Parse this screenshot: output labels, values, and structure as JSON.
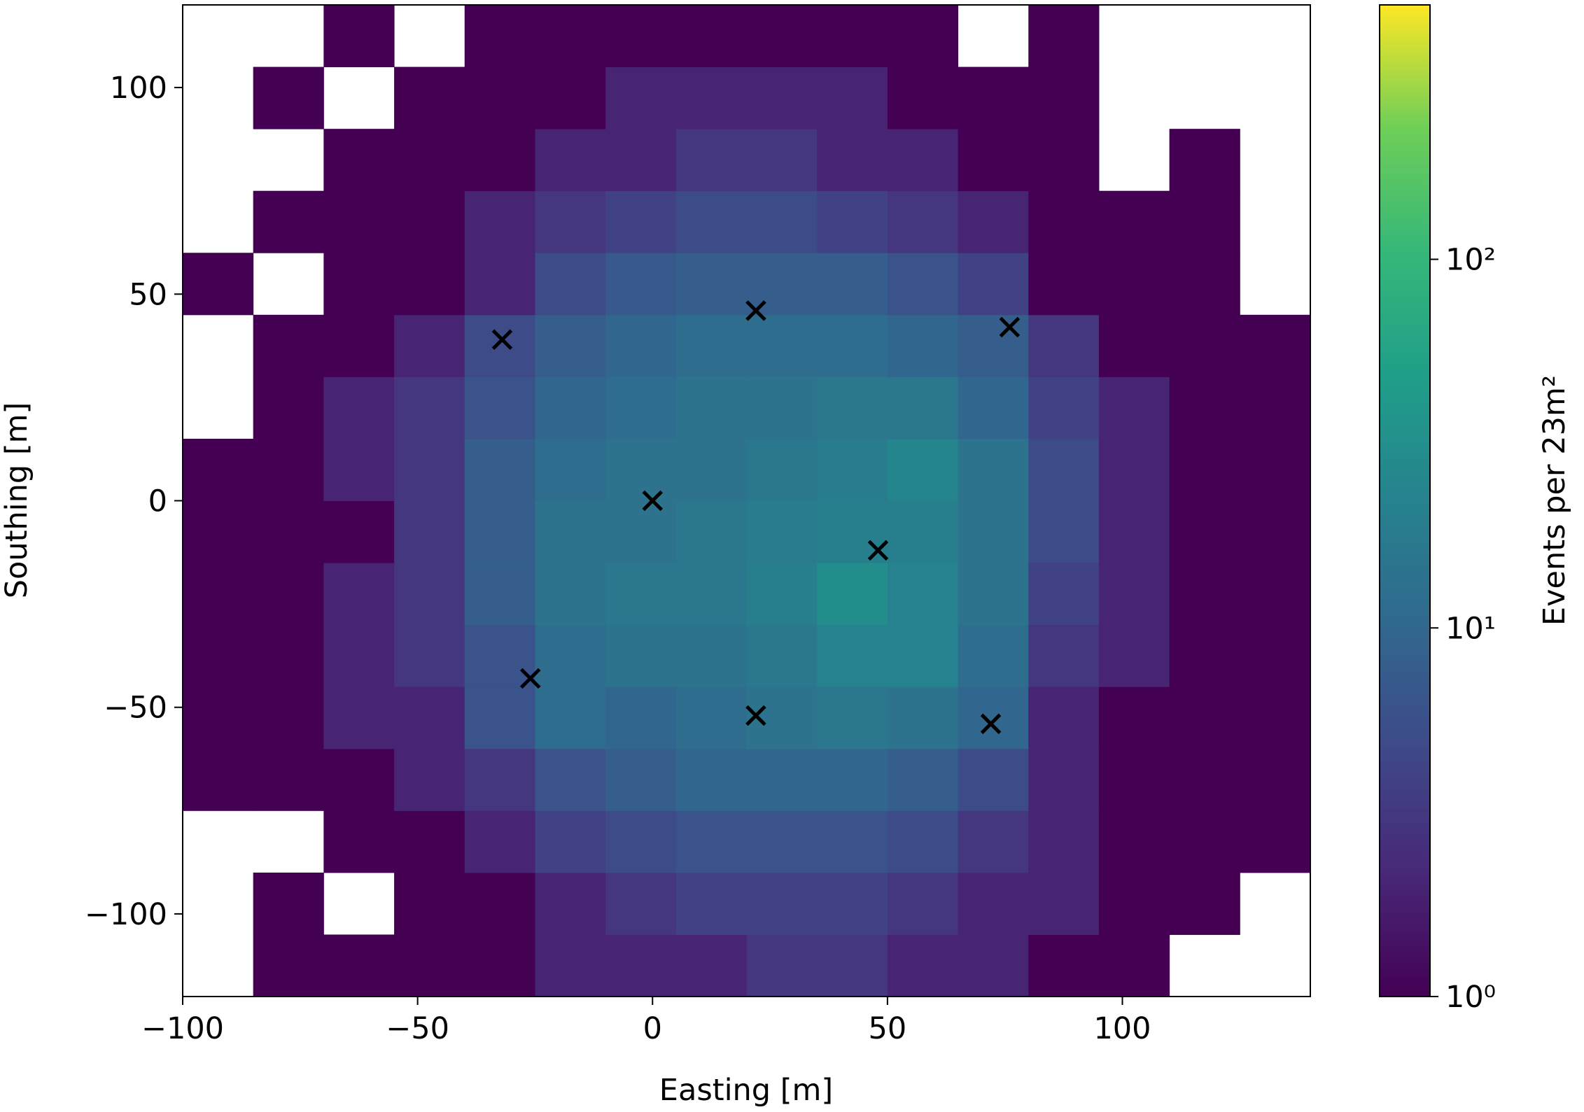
{
  "chart_data": {
    "type": "histogram2d",
    "xlabel": "Easting [m]",
    "ylabel": "Southing [m]",
    "colorbar_label": "Events per 23m²",
    "colormap": "viridis",
    "color_scale": "log",
    "xbins": [
      -100,
      -85,
      -70,
      -55,
      -40,
      -25,
      -10,
      5,
      20,
      35,
      50,
      65,
      80,
      95,
      110,
      125,
      140
    ],
    "ybins": [
      -120,
      -105,
      -90,
      -75,
      -60,
      -45,
      -30,
      -15,
      0,
      15,
      30,
      45,
      60,
      75,
      90,
      105,
      120
    ],
    "values": [
      [
        null,
        1,
        1,
        1,
        1,
        2,
        2,
        2,
        3,
        3,
        2,
        2,
        1,
        1,
        null,
        null
      ],
      [
        null,
        1,
        null,
        1,
        1,
        2,
        3,
        4,
        4,
        4,
        3,
        2,
        2,
        1,
        1,
        null
      ],
      [
        null,
        null,
        1,
        1,
        2,
        4,
        5,
        6,
        6,
        6,
        5,
        3,
        2,
        1,
        1,
        1
      ],
      [
        1,
        1,
        1,
        2,
        3,
        6,
        8,
        10,
        10,
        10,
        8,
        5,
        2,
        1,
        1,
        1
      ],
      [
        1,
        1,
        2,
        2,
        6,
        12,
        10,
        12,
        14,
        16,
        14,
        10,
        2,
        1,
        1,
        1
      ],
      [
        1,
        1,
        2,
        3,
        6,
        12,
        14,
        14,
        16,
        22,
        22,
        12,
        3,
        2,
        1,
        1
      ],
      [
        1,
        1,
        2,
        3,
        8,
        14,
        16,
        16,
        20,
        30,
        22,
        14,
        4,
        2,
        1,
        1
      ],
      [
        1,
        1,
        1,
        3,
        8,
        14,
        14,
        16,
        18,
        20,
        20,
        14,
        5,
        2,
        1,
        1
      ],
      [
        1,
        1,
        2,
        3,
        8,
        12,
        14,
        14,
        16,
        18,
        24,
        14,
        5,
        2,
        1,
        1
      ],
      [
        null,
        1,
        2,
        3,
        6,
        10,
        12,
        14,
        14,
        16,
        16,
        10,
        4,
        2,
        1,
        1
      ],
      [
        null,
        1,
        1,
        2,
        5,
        8,
        10,
        12,
        12,
        12,
        10,
        8,
        3,
        1,
        1,
        1
      ],
      [
        1,
        null,
        1,
        1,
        2,
        5,
        7,
        8,
        8,
        8,
        6,
        4,
        1,
        1,
        1,
        null
      ],
      [
        null,
        1,
        1,
        1,
        2,
        3,
        4,
        5,
        5,
        4,
        3,
        2,
        1,
        1,
        1,
        null
      ],
      [
        null,
        null,
        1,
        1,
        1,
        2,
        2,
        3,
        3,
        2,
        2,
        1,
        1,
        null,
        1,
        null
      ],
      [
        null,
        1,
        null,
        1,
        1,
        1,
        2,
        2,
        2,
        2,
        1,
        1,
        1,
        null,
        null,
        null
      ],
      [
        null,
        null,
        1,
        null,
        1,
        1,
        1,
        1,
        1,
        1,
        1,
        null,
        1,
        null,
        null,
        null
      ]
    ],
    "markers": {
      "color": "#000000",
      "x": [
        -32,
        22,
        76,
        0,
        48,
        -26,
        22,
        72
      ],
      "y": [
        39,
        46,
        42,
        0,
        -12,
        -43,
        -52,
        -54
      ]
    },
    "xlim": [
      -100,
      140
    ],
    "ylim": [
      -120,
      120
    ],
    "clim": [
      1,
      490
    ],
    "xticks": [
      {
        "value": -100,
        "label": "−100"
      },
      {
        "value": -50,
        "label": "−50"
      },
      0,
      50,
      100
    ],
    "yticks": [
      {
        "value": -100,
        "label": "−100"
      },
      {
        "value": -50,
        "label": "−50"
      },
      0,
      50,
      100
    ],
    "cticks": [
      {
        "value": 1,
        "label": "10⁰"
      },
      {
        "value": 10,
        "label": "10¹"
      },
      {
        "value": 100,
        "label": "10²"
      }
    ]
  }
}
